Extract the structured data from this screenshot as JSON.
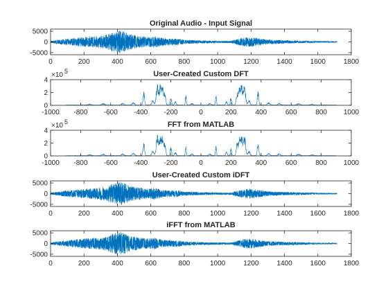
{
  "colors": {
    "signal": "#0072BD",
    "axis": "#262626",
    "background": "#ffffff"
  },
  "chart_data": [
    {
      "type": "line",
      "title": "Original Audio - Input Signal",
      "xlabel": "",
      "ylabel": "",
      "xlim": [
        0,
        1800
      ],
      "ylim": [
        -6000,
        6000
      ],
      "xticks": [
        0,
        200,
        400,
        600,
        800,
        1000,
        1200,
        1400,
        1600,
        1800
      ],
      "yticks": [
        -5000,
        0,
        5000
      ],
      "y_exponent": "",
      "signal": "time",
      "x_range": [
        0,
        1715
      ],
      "envelope": [
        [
          0,
          500
        ],
        [
          100,
          1500
        ],
        [
          200,
          2300
        ],
        [
          280,
          2700
        ],
        [
          330,
          3400
        ],
        [
          380,
          4800
        ],
        [
          420,
          5600
        ],
        [
          470,
          3800
        ],
        [
          520,
          3000
        ],
        [
          580,
          2300
        ],
        [
          620,
          2800
        ],
        [
          680,
          1700
        ],
        [
          760,
          1600
        ],
        [
          800,
          1000
        ],
        [
          900,
          700
        ],
        [
          1000,
          550
        ],
        [
          1080,
          500
        ],
        [
          1120,
          1500
        ],
        [
          1160,
          2100
        ],
        [
          1200,
          2400
        ],
        [
          1240,
          1800
        ],
        [
          1300,
          1100
        ],
        [
          1400,
          800
        ],
        [
          1500,
          600
        ],
        [
          1600,
          400
        ],
        [
          1715,
          250
        ]
      ]
    },
    {
      "type": "line",
      "title": "User-Created Custom DFT",
      "xlabel": "",
      "ylabel": "",
      "xlim": [
        -1000,
        1000
      ],
      "ylim": [
        0,
        400000
      ],
      "xticks": [
        -1000,
        -800,
        -600,
        -400,
        -200,
        0,
        200,
        400,
        600,
        800,
        1000
      ],
      "yticks": [
        0,
        200000,
        400000
      ],
      "ytick_labels": [
        "0",
        "2",
        "4"
      ],
      "y_exponent": "5",
      "signal": "spectrum",
      "x_range": [
        -900,
        900
      ],
      "peaks": [
        [
          380,
          230000,
          7
        ],
        [
          290,
          340000,
          10
        ],
        [
          270,
          320000,
          10
        ],
        [
          255,
          290000,
          8
        ],
        [
          240,
          210000,
          8
        ],
        [
          200,
          140000,
          6
        ],
        [
          100,
          170000,
          5
        ],
        [
          170,
          60000,
          8
        ],
        [
          320,
          80000,
          10
        ],
        [
          450,
          40000,
          12
        ],
        [
          520,
          30000,
          12
        ],
        [
          650,
          25000,
          14
        ],
        [
          740,
          15000,
          14
        ],
        [
          60,
          30000,
          10
        ]
      ]
    },
    {
      "type": "line",
      "title": "FFT from MATLAB",
      "xlabel": "",
      "ylabel": "",
      "xlim": [
        -1000,
        1000
      ],
      "ylim": [
        0,
        400000
      ],
      "xticks": [
        -1000,
        -800,
        -600,
        -400,
        -200,
        0,
        200,
        400,
        600,
        800,
        1000
      ],
      "yticks": [
        0,
        200000,
        400000
      ],
      "ytick_labels": [
        "0",
        "2",
        "4"
      ],
      "y_exponent": "5",
      "signal": "spectrum",
      "x_range": [
        -900,
        900
      ],
      "peaks": [
        [
          380,
          230000,
          7
        ],
        [
          290,
          340000,
          10
        ],
        [
          270,
          320000,
          10
        ],
        [
          255,
          290000,
          8
        ],
        [
          240,
          210000,
          8
        ],
        [
          200,
          140000,
          6
        ],
        [
          100,
          170000,
          5
        ],
        [
          170,
          60000,
          8
        ],
        [
          320,
          80000,
          10
        ],
        [
          450,
          40000,
          12
        ],
        [
          520,
          30000,
          12
        ],
        [
          650,
          25000,
          14
        ],
        [
          740,
          15000,
          14
        ],
        [
          60,
          30000,
          10
        ]
      ]
    },
    {
      "type": "line",
      "title": "User-Created Custom iDFT",
      "xlabel": "",
      "ylabel": "",
      "xlim": [
        0,
        1800
      ],
      "ylim": [
        -6000,
        6000
      ],
      "xticks": [
        0,
        200,
        400,
        600,
        800,
        1000,
        1200,
        1400,
        1600,
        1800
      ],
      "yticks": [
        -5000,
        0,
        5000
      ],
      "y_exponent": "",
      "signal": "time",
      "x_range": [
        0,
        1715
      ],
      "envelope": [
        [
          0,
          500
        ],
        [
          100,
          1500
        ],
        [
          200,
          2300
        ],
        [
          280,
          2700
        ],
        [
          330,
          3400
        ],
        [
          380,
          4800
        ],
        [
          420,
          5600
        ],
        [
          470,
          3800
        ],
        [
          520,
          3000
        ],
        [
          580,
          2300
        ],
        [
          620,
          2800
        ],
        [
          680,
          1700
        ],
        [
          760,
          1600
        ],
        [
          800,
          1000
        ],
        [
          900,
          700
        ],
        [
          1000,
          550
        ],
        [
          1080,
          500
        ],
        [
          1120,
          1500
        ],
        [
          1160,
          2100
        ],
        [
          1200,
          2400
        ],
        [
          1240,
          1800
        ],
        [
          1300,
          1100
        ],
        [
          1400,
          800
        ],
        [
          1500,
          600
        ],
        [
          1600,
          400
        ],
        [
          1715,
          250
        ]
      ]
    },
    {
      "type": "line",
      "title": "iFFT from MATLAB",
      "xlabel": "",
      "ylabel": "",
      "xlim": [
        0,
        1800
      ],
      "ylim": [
        -6000,
        6000
      ],
      "xticks": [
        0,
        200,
        400,
        600,
        800,
        1000,
        1200,
        1400,
        1600,
        1800
      ],
      "yticks": [
        -5000,
        0,
        5000
      ],
      "y_exponent": "",
      "signal": "time",
      "x_range": [
        0,
        1715
      ],
      "envelope": [
        [
          0,
          500
        ],
        [
          100,
          1500
        ],
        [
          200,
          2300
        ],
        [
          280,
          2700
        ],
        [
          330,
          3400
        ],
        [
          380,
          4800
        ],
        [
          420,
          5600
        ],
        [
          470,
          3800
        ],
        [
          520,
          3000
        ],
        [
          580,
          2300
        ],
        [
          620,
          2800
        ],
        [
          680,
          1700
        ],
        [
          760,
          1600
        ],
        [
          800,
          1000
        ],
        [
          900,
          700
        ],
        [
          1000,
          550
        ],
        [
          1080,
          500
        ],
        [
          1120,
          1500
        ],
        [
          1160,
          2100
        ],
        [
          1200,
          2400
        ],
        [
          1240,
          1800
        ],
        [
          1300,
          1100
        ],
        [
          1400,
          800
        ],
        [
          1500,
          600
        ],
        [
          1600,
          400
        ],
        [
          1715,
          250
        ]
      ]
    }
  ]
}
